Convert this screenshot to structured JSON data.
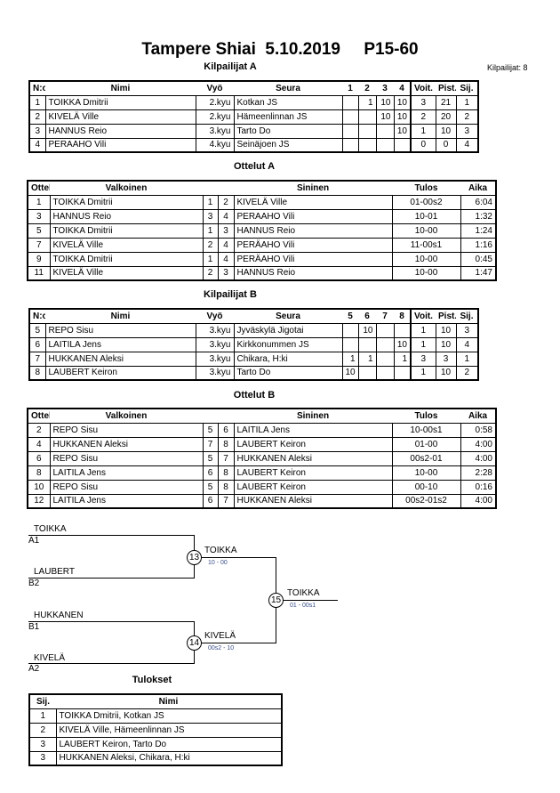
{
  "title": "Tampere Shiai  5.10.2019     P15-60",
  "competitors_count": "Kilpailijat: 8",
  "pool_a": {
    "heading": "Kilpailijat A",
    "headers": [
      "N:o",
      "Nimi",
      "Vyö",
      "Seura",
      "1",
      "2",
      "3",
      "4",
      "Voit.",
      "Pist.",
      "Sij."
    ],
    "rows": [
      [
        "1",
        "TOIKKA Dmitrii",
        "2.kyu",
        "Kotkan JS",
        "",
        "1",
        "10",
        "10",
        "3",
        "21",
        "1"
      ],
      [
        "2",
        "KIVELÄ Ville",
        "2.kyu",
        "Hämeenlinnan JS",
        "",
        "",
        "10",
        "10",
        "2",
        "20",
        "2"
      ],
      [
        "3",
        "HANNUS Reio",
        "3.kyu",
        "Tarto Do",
        "",
        "",
        "",
        "10",
        "1",
        "10",
        "3"
      ],
      [
        "4",
        "PERAAHO Vili",
        "4.kyu",
        "Seinäjoen JS",
        "",
        "",
        "",
        "",
        "0",
        "0",
        "4"
      ]
    ]
  },
  "matches_a": {
    "heading": "Ottelut A",
    "headers": [
      "Ottelu",
      "Valkoinen",
      "",
      "",
      "Sininen",
      "Tulos",
      "Aika"
    ],
    "rows": [
      [
        "1",
        "TOIKKA Dmitrii",
        "1",
        "2",
        "KIVELÄ Ville",
        "01-00s2",
        "6:04"
      ],
      [
        "3",
        "HANNUS Reio",
        "3",
        "4",
        "PERAAHO Vili",
        "10-01",
        "1:32"
      ],
      [
        "5",
        "TOIKKA Dmitrii",
        "1",
        "3",
        "HANNUS Reio",
        "10-00",
        "1:24"
      ],
      [
        "7",
        "KIVELÄ Ville",
        "2",
        "4",
        "PERÄAHO Vili",
        "11-00s1",
        "1:16"
      ],
      [
        "9",
        "TOIKKA Dmitrii",
        "1",
        "4",
        "PERÄAHO Vili",
        "10-00",
        "0:45"
      ],
      [
        "11",
        "KIVELÄ Ville",
        "2",
        "3",
        "HANNUS Reio",
        "10-00",
        "1:47"
      ]
    ]
  },
  "pool_b": {
    "heading": "Kilpailijat B",
    "headers": [
      "N:o",
      "Nimi",
      "Vyö",
      "Seura",
      "5",
      "6",
      "7",
      "8",
      "Voit.",
      "Pist.",
      "Sij."
    ],
    "rows": [
      [
        "5",
        "REPO Sisu",
        "3.kyu",
        "Jyväskylä Jigotai",
        "",
        "10",
        "",
        "",
        "1",
        "10",
        "3"
      ],
      [
        "6",
        "LAITILA Jens",
        "3.kyu",
        "Kirkkonummen JS",
        "",
        "",
        "",
        "10",
        "1",
        "10",
        "4"
      ],
      [
        "7",
        "HUKKANEN Aleksi",
        "3.kyu",
        "Chikara, H:ki",
        "1",
        "1",
        "",
        "1",
        "3",
        "3",
        "1"
      ],
      [
        "8",
        "LAUBERT Keiron",
        "3.kyu",
        "Tarto Do",
        "10",
        "",
        "",
        "",
        "1",
        "10",
        "2"
      ]
    ]
  },
  "matches_b": {
    "heading": "Ottelut B",
    "headers": [
      "Ottelu",
      "Valkoinen",
      "",
      "",
      "Sininen",
      "Tulos",
      "Aika"
    ],
    "rows": [
      [
        "2",
        "REPO Sisu",
        "5",
        "6",
        "LAITILA Jens",
        "10-00s1",
        "0:58"
      ],
      [
        "4",
        "HUKKANEN Aleksi",
        "7",
        "8",
        "LAUBERT Keiron",
        "01-00",
        "4:00"
      ],
      [
        "6",
        "REPO Sisu",
        "5",
        "7",
        "HUKKANEN Aleksi",
        "00s2-01",
        "4:00"
      ],
      [
        "8",
        "LAITILA Jens",
        "6",
        "8",
        "LAUBERT Keiron",
        "10-00",
        "2:28"
      ],
      [
        "10",
        "REPO Sisu",
        "5",
        "8",
        "LAUBERT Keiron",
        "00-10",
        "0:16"
      ],
      [
        "12",
        "LAITILA Jens",
        "6",
        "7",
        "HUKKANEN Aleksi",
        "00s2-01s2",
        "4:00"
      ]
    ]
  },
  "bracket": {
    "m13": {
      "no": "13",
      "top_name": "TOIKKA",
      "top_src": "A1",
      "bottom_name": "LAUBERT",
      "bottom_src": "B2",
      "winner": "TOIKKA",
      "score": "10 - 00"
    },
    "m14": {
      "no": "14",
      "top_name": "HUKKANEN",
      "top_src": "B1",
      "bottom_name": "KIVELÄ",
      "bottom_src": "A2",
      "winner": "KIVELÄ",
      "score": "00s2 - 10"
    },
    "m15": {
      "no": "15",
      "winner": "TOIKKA",
      "score": "01 - 00s1"
    },
    "score_color": "#3a4f8a"
  },
  "results": {
    "heading": "Tulokset",
    "headers": [
      "Sij.",
      "Nimi"
    ],
    "rows": [
      [
        "1",
        "TOIKKA Dmitrii, Kotkan JS"
      ],
      [
        "2",
        "KIVELÄ Ville, Hämeenlinnan JS"
      ],
      [
        "3",
        "LAUBERT Keiron, Tarto Do"
      ],
      [
        "3",
        "HUKKANEN Aleksi, Chikara, H:ki"
      ]
    ]
  }
}
